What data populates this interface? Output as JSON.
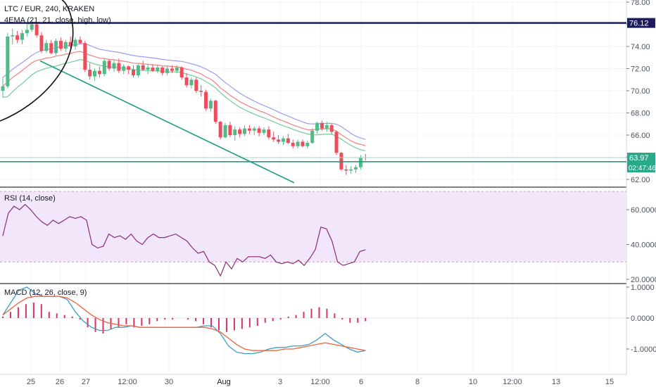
{
  "header": {
    "symbol_line": "LTC / EUR, 240, KRAKEN",
    "ema_line": "4EMA (21, 21, close, high, low)"
  },
  "rsi_title": "RSI (14, close)",
  "macd_title": "MACD (12, 26, close, 9)",
  "colors": {
    "up": "#53b987",
    "down": "#eb4d5c",
    "ema_high": "#9c9cf0",
    "ema_close": "#f08080",
    "ema_low": "#6fcf97",
    "trendline": "#1e9e7e",
    "resistance": "#1c1c5e",
    "rsi_line": "#8b2a7a",
    "rsi_band": "#f2e6fb",
    "macd_line": "#3aa0c9",
    "signal_line": "#f0653c",
    "histogram": "#d6336c",
    "last_price_badge": "#2aa88a",
    "resistance_badge": "#1c1c5e"
  },
  "chart_data": [
    {
      "type": "candlestick",
      "title": "LTC / EUR, 240, KRAKEN",
      "ylim": [
        61.5,
        78.3
      ],
      "y_ticks": [
        "78.00",
        "76.00",
        "74.00",
        "72.00",
        "70.00",
        "68.00",
        "66.00",
        "64.00",
        "62.00"
      ],
      "x_ticks": [
        "25",
        "26",
        "27",
        "12:00",
        "30",
        "Aug",
        "3",
        "12:00",
        "6",
        "8",
        "10",
        "12:00",
        "13",
        "15"
      ],
      "resistance_level": 76.12,
      "support_level": 63.6,
      "last_price": 63.97,
      "countdown": "02:47:46",
      "candles": [
        [
          70.0,
          71.2,
          69.4,
          70.4
        ],
        [
          70.4,
          75.2,
          70.2,
          74.9
        ],
        [
          74.9,
          75.6,
          74.2,
          75.0
        ],
        [
          75.0,
          75.4,
          74.3,
          74.6
        ],
        [
          74.6,
          75.5,
          74.2,
          75.2
        ],
        [
          75.2,
          76.1,
          74.9,
          75.5
        ],
        [
          75.5,
          76.4,
          75.3,
          76.0
        ],
        [
          76.0,
          76.2,
          74.8,
          75.0
        ],
        [
          75.0,
          75.3,
          73.4,
          73.6
        ],
        [
          73.6,
          74.6,
          73.4,
          74.3
        ],
        [
          74.3,
          74.6,
          73.3,
          73.4
        ],
        [
          73.4,
          74.7,
          73.2,
          74.5
        ],
        [
          74.5,
          74.8,
          73.6,
          73.8
        ],
        [
          73.8,
          74.6,
          73.5,
          74.4
        ],
        [
          74.4,
          74.9,
          73.8,
          74.0
        ],
        [
          74.0,
          74.8,
          73.7,
          74.6
        ],
        [
          74.6,
          74.9,
          74.2,
          74.3
        ],
        [
          74.3,
          74.5,
          71.7,
          71.9
        ],
        [
          71.9,
          72.5,
          71.0,
          71.3
        ],
        [
          71.3,
          72.0,
          70.9,
          71.8
        ],
        [
          71.8,
          72.2,
          71.2,
          71.5
        ],
        [
          71.5,
          72.9,
          71.3,
          72.7
        ],
        [
          72.7,
          72.8,
          71.8,
          72.0
        ],
        [
          72.0,
          72.8,
          71.7,
          72.5
        ],
        [
          72.5,
          72.9,
          71.6,
          71.8
        ],
        [
          71.8,
          72.4,
          71.5,
          72.2
        ],
        [
          72.2,
          72.3,
          71.5,
          71.9
        ],
        [
          71.9,
          72.3,
          71.2,
          71.4
        ],
        [
          71.4,
          72.4,
          71.2,
          72.3
        ],
        [
          72.3,
          72.7,
          71.8,
          71.9
        ],
        [
          71.9,
          72.4,
          71.5,
          72.1
        ],
        [
          72.1,
          72.4,
          71.7,
          71.8
        ],
        [
          71.8,
          72.3,
          71.6,
          72.1
        ],
        [
          72.1,
          72.2,
          71.4,
          71.6
        ],
        [
          71.6,
          72.2,
          71.4,
          72.0
        ],
        [
          72.0,
          72.3,
          71.6,
          71.8
        ],
        [
          71.8,
          72.3,
          71.6,
          72.1
        ],
        [
          72.1,
          72.2,
          71.0,
          71.2
        ],
        [
          71.2,
          71.6,
          70.3,
          70.5
        ],
        [
          70.5,
          71.2,
          70.2,
          71.0
        ],
        [
          71.0,
          71.2,
          69.8,
          70.0
        ],
        [
          70.0,
          70.5,
          69.5,
          69.9
        ],
        [
          69.9,
          70.1,
          68.2,
          68.4
        ],
        [
          68.4,
          69.3,
          68.1,
          69.1
        ],
        [
          69.1,
          69.2,
          67.0,
          67.2
        ],
        [
          67.2,
          67.3,
          65.6,
          65.8
        ],
        [
          65.8,
          67.1,
          65.7,
          66.9
        ],
        [
          66.9,
          67.2,
          65.8,
          66.0
        ],
        [
          66.0,
          66.8,
          65.5,
          66.5
        ],
        [
          66.5,
          66.7,
          65.8,
          66.1
        ],
        [
          66.1,
          66.9,
          65.9,
          66.6
        ],
        [
          66.6,
          66.9,
          66.1,
          66.4
        ],
        [
          66.4,
          66.8,
          66.0,
          66.6
        ],
        [
          66.6,
          66.8,
          65.9,
          66.2
        ],
        [
          66.2,
          66.7,
          66.0,
          66.5
        ],
        [
          66.5,
          66.8,
          65.6,
          65.8
        ],
        [
          65.8,
          66.3,
          65.4,
          65.6
        ],
        [
          65.6,
          66.0,
          65.2,
          65.4
        ],
        [
          65.4,
          65.9,
          65.1,
          65.7
        ],
        [
          65.7,
          66.1,
          65.2,
          65.3
        ],
        [
          65.3,
          65.6,
          64.8,
          65.0
        ],
        [
          65.0,
          65.6,
          64.8,
          65.4
        ],
        [
          65.4,
          65.6,
          64.9,
          65.0
        ],
        [
          65.0,
          65.5,
          64.8,
          65.3
        ],
        [
          65.3,
          66.6,
          65.2,
          66.4
        ],
        [
          66.4,
          67.2,
          66.1,
          67.1
        ],
        [
          67.1,
          67.3,
          66.4,
          66.6
        ],
        [
          66.6,
          67.2,
          66.3,
          66.9
        ],
        [
          66.9,
          67.0,
          66.1,
          66.3
        ],
        [
          66.3,
          66.4,
          64.2,
          64.4
        ],
        [
          64.4,
          64.5,
          62.8,
          62.9
        ],
        [
          62.9,
          63.3,
          62.4,
          62.8
        ],
        [
          62.8,
          63.2,
          62.5,
          62.9
        ],
        [
          62.9,
          63.3,
          62.6,
          63.1
        ],
        [
          63.1,
          64.2,
          62.9,
          64.0
        ],
        [
          64.0,
          64.3,
          63.7,
          63.97
        ]
      ]
    },
    {
      "type": "line",
      "title": "RSI (14, close)",
      "ylim": [
        18,
        63
      ],
      "y_ticks": [
        "60.0000",
        "40.0000",
        "20.0000"
      ],
      "band": [
        30,
        70
      ],
      "values": [
        45,
        58,
        62,
        60,
        63,
        60,
        56,
        53,
        51,
        54,
        52,
        54,
        56,
        55,
        56,
        54,
        40,
        38,
        39,
        46,
        44,
        45,
        43,
        46,
        42,
        40,
        44,
        46,
        44,
        44,
        45,
        46,
        44,
        42,
        38,
        35,
        36,
        30,
        28,
        22,
        30,
        26,
        32,
        30,
        33,
        33,
        33,
        32,
        34,
        30,
        29,
        30,
        29,
        31,
        28,
        32,
        37,
        50,
        49,
        42,
        30,
        28,
        29,
        30,
        36,
        37
      ]
    },
    {
      "type": "line",
      "title": "MACD (12, 26, close, 9)",
      "ylim": [
        -1.4,
        1.05
      ],
      "y_ticks": [
        "1.0000",
        "0.0000",
        "-1.0000"
      ],
      "series": [
        {
          "values": [
            0.1,
            0.5,
            0.9,
            1.0,
            0.8,
            0.7,
            0.7,
            0.7,
            0.6,
            0.2,
            -0.1,
            -0.3,
            -0.4,
            -0.4,
            -0.3,
            -0.3,
            -0.25,
            -0.3,
            -0.3,
            -0.3,
            -0.3,
            -0.3,
            -0.3,
            -0.3,
            -0.3,
            -0.25,
            -0.25,
            -0.5,
            -0.9,
            -1.1,
            -1.15,
            -1.15,
            -1.1,
            -1.0,
            -0.95,
            -0.95,
            -0.9,
            -0.9,
            -0.85,
            -0.7,
            -0.5,
            -0.7,
            -0.85,
            -1.0,
            -1.1,
            -1.05
          ]
        },
        {
          "values": [
            0.1,
            0.3,
            0.5,
            0.65,
            0.7,
            0.7,
            0.7,
            0.7,
            0.65,
            0.5,
            0.3,
            0.1,
            -0.05,
            -0.15,
            -0.2,
            -0.25,
            -0.25,
            -0.3,
            -0.3,
            -0.3,
            -0.3,
            -0.3,
            -0.3,
            -0.3,
            -0.3,
            -0.3,
            -0.35,
            -0.45,
            -0.65,
            -0.85,
            -1.0,
            -1.05,
            -1.05,
            -1.05,
            -1.05,
            -1.0,
            -1.0,
            -0.95,
            -0.9,
            -0.85,
            -0.8,
            -0.85,
            -0.9,
            -0.95,
            -1.0,
            -1.05
          ]
        }
      ],
      "histogram": [
        0.05,
        0.2,
        0.35,
        0.45,
        0.5,
        0.45,
        0.2,
        0.15,
        0.1,
        0.05,
        -0.05,
        -0.3,
        -0.45,
        -0.5,
        -0.35,
        -0.3,
        -0.2,
        -0.3,
        -0.25,
        -0.2,
        -0.1,
        -0.05,
        -0.05,
        0.0,
        -0.05,
        -0.1,
        -0.2,
        -0.3,
        -0.4,
        -0.45,
        -0.4,
        -0.35,
        -0.3,
        -0.25,
        -0.15,
        -0.1,
        -0.05,
        0.05,
        0.1,
        0.2,
        0.3,
        0.35,
        0.3,
        0.15,
        -0.05,
        -0.15,
        -0.15,
        -0.1
      ]
    }
  ]
}
